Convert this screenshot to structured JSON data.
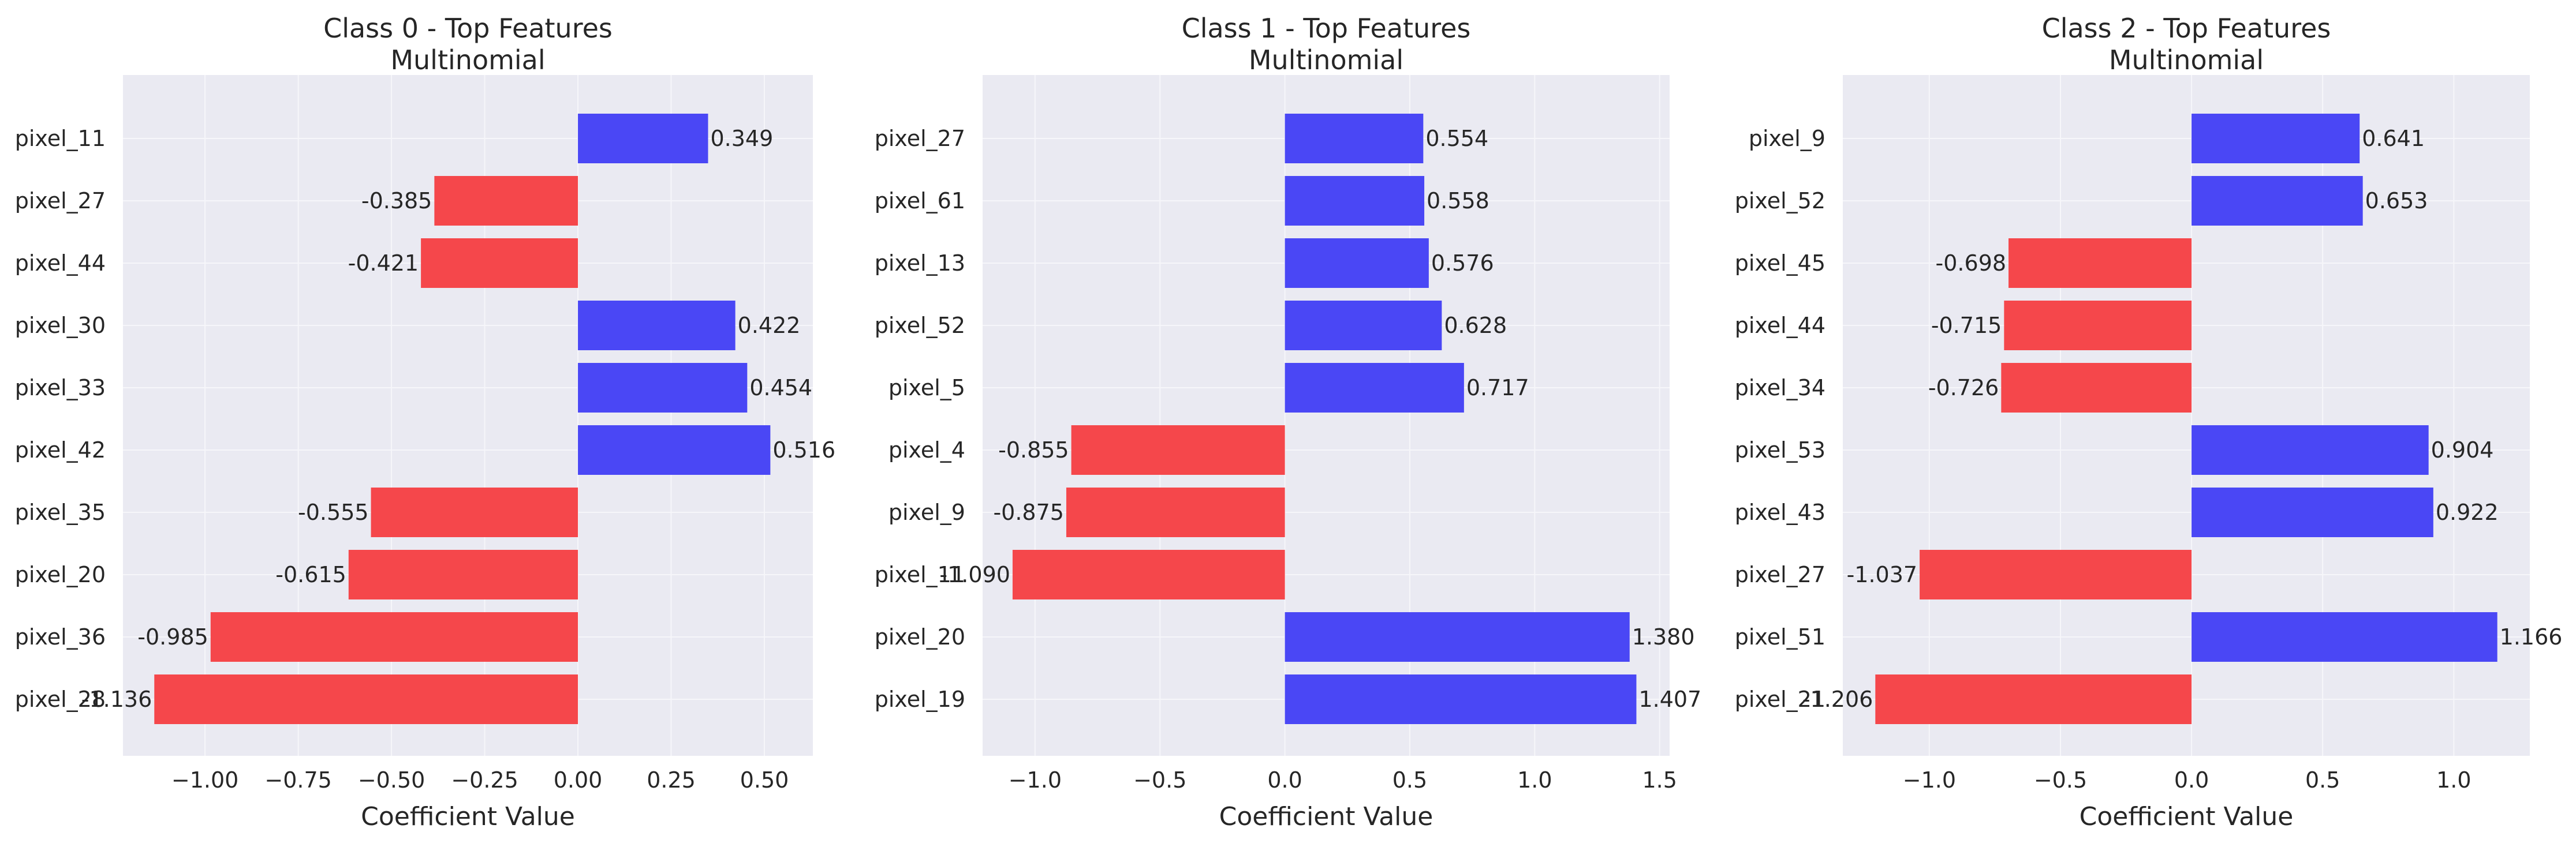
{
  "colors": {
    "positive": "#4a47f5",
    "negative": "#f5474b",
    "axes_background": "#eaeaf2",
    "grid": "#f6f6fa"
  },
  "chart_data": [
    {
      "type": "bar",
      "orientation": "horizontal",
      "title": "Class 0 - Top Features",
      "subtitle": "Multinomial",
      "xlabel": "Coefficient Value",
      "ylabel": "",
      "xlim": [
        -1.22,
        0.63
      ],
      "xticks": [
        -1.0,
        -0.75,
        -0.5,
        -0.25,
        0.0,
        0.25,
        0.5
      ],
      "xtick_labels": [
        "−1.00",
        "−0.75",
        "−0.50",
        "−0.25",
        "0.00",
        "0.25",
        "0.50"
      ],
      "categories": [
        "pixel_11",
        "pixel_27",
        "pixel_44",
        "pixel_30",
        "pixel_33",
        "pixel_42",
        "pixel_35",
        "pixel_20",
        "pixel_36",
        "pixel_28"
      ],
      "values": [
        0.349,
        -0.385,
        -0.421,
        0.422,
        0.454,
        0.516,
        -0.555,
        -0.615,
        -0.985,
        -1.136
      ],
      "value_labels": [
        "0.349",
        "-0.385",
        "-0.421",
        "0.422",
        "0.454",
        "0.516",
        "-0.555",
        "-0.615",
        "-0.985",
        "-1.136"
      ],
      "grid": true
    },
    {
      "type": "bar",
      "orientation": "horizontal",
      "title": "Class 1 - Top Features",
      "subtitle": "Multinomial",
      "xlabel": "Coefficient Value",
      "ylabel": "",
      "xlim": [
        -1.21,
        1.54
      ],
      "xticks": [
        -1.0,
        -0.5,
        0.0,
        0.5,
        1.0,
        1.5
      ],
      "xtick_labels": [
        "−1.0",
        "−0.5",
        "0.0",
        "0.5",
        "1.0",
        "1.5"
      ],
      "categories": [
        "pixel_27",
        "pixel_61",
        "pixel_13",
        "pixel_52",
        "pixel_5",
        "pixel_4",
        "pixel_9",
        "pixel_11",
        "pixel_20",
        "pixel_19"
      ],
      "values": [
        0.554,
        0.558,
        0.576,
        0.628,
        0.717,
        -0.855,
        -0.875,
        -1.09,
        1.38,
        1.407
      ],
      "value_labels": [
        "0.554",
        "0.558",
        "0.576",
        "0.628",
        "0.717",
        "-0.855",
        "-0.875",
        "-1.090",
        "1.380",
        "1.407"
      ],
      "grid": true
    },
    {
      "type": "bar",
      "orientation": "horizontal",
      "title": "Class 2 - Top Features",
      "subtitle": "Multinomial",
      "xlabel": "Coefficient Value",
      "ylabel": "",
      "xlim": [
        -1.33,
        1.29
      ],
      "xticks": [
        -1.0,
        -0.5,
        0.0,
        0.5,
        1.0
      ],
      "xtick_labels": [
        "−1.0",
        "−0.5",
        "0.0",
        "0.5",
        "1.0"
      ],
      "categories": [
        "pixel_9",
        "pixel_52",
        "pixel_45",
        "pixel_44",
        "pixel_34",
        "pixel_53",
        "pixel_43",
        "pixel_27",
        "pixel_51",
        "pixel_21"
      ],
      "values": [
        0.641,
        0.653,
        -0.698,
        -0.715,
        -0.726,
        0.904,
        0.922,
        -1.037,
        1.166,
        -1.206
      ],
      "value_labels": [
        "0.641",
        "0.653",
        "-0.698",
        "-0.715",
        "-0.726",
        "0.904",
        "0.922",
        "-1.037",
        "1.166",
        "-1.206"
      ],
      "grid": true
    }
  ]
}
